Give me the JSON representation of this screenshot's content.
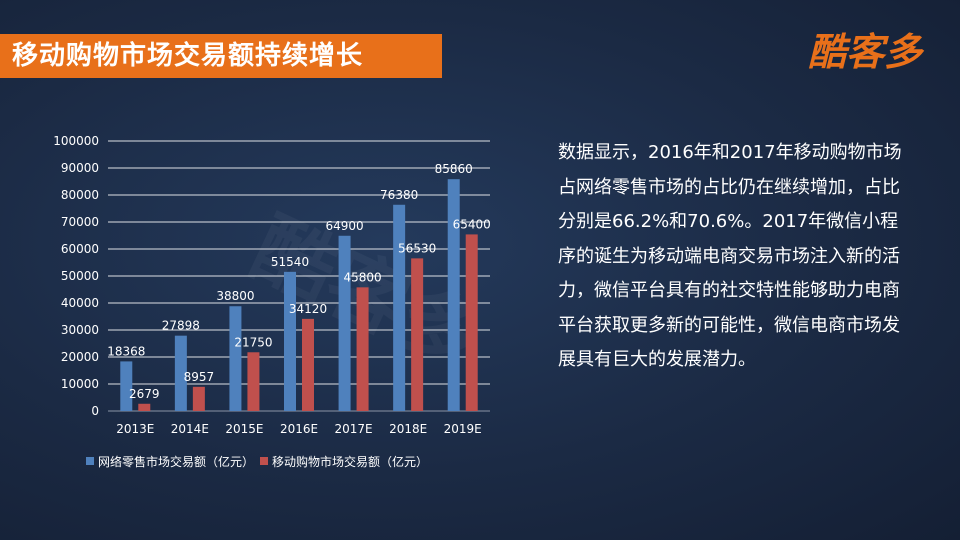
{
  "slide": {
    "title": "移动购物市场交易额持续增长",
    "logo": "酷客多",
    "description": "数据显示，2016年和2017年移动购物市场占网络零售市场的占比仍在继续增加，占比分别是66.2%和70.6%。2017年微信小程序的诞生为移动端电商交易市场注入新的活力，微信平台具有的社交特性能够助力电商平台获取更多新的可能性，微信电商市场发展具有巨大的发展潜力。"
  },
  "colors": {
    "accent": "#e8701a",
    "series_blue": "#4f81bd",
    "series_red": "#c0504d",
    "background": "#1b2a44"
  },
  "chart_data": {
    "type": "bar",
    "categories": [
      "2013E",
      "2014E",
      "2015E",
      "2016E",
      "2017E",
      "2018E",
      "2019E"
    ],
    "series": [
      {
        "name": "网络零售市场交易额（亿元）",
        "values": [
          18368,
          27898,
          38800,
          51540,
          64900,
          76380,
          85860
        ],
        "color": "#4f81bd"
      },
      {
        "name": "移动购物市场交易额（亿元）",
        "values": [
          2679,
          8957,
          21750,
          34120,
          45800,
          56530,
          65400
        ],
        "color": "#c0504d"
      }
    ],
    "yticks": [
      0,
      10000,
      20000,
      30000,
      40000,
      50000,
      60000,
      70000,
      80000,
      90000,
      100000
    ],
    "ylim": [
      0,
      100000
    ],
    "grid": true,
    "legend_position": "bottom"
  }
}
